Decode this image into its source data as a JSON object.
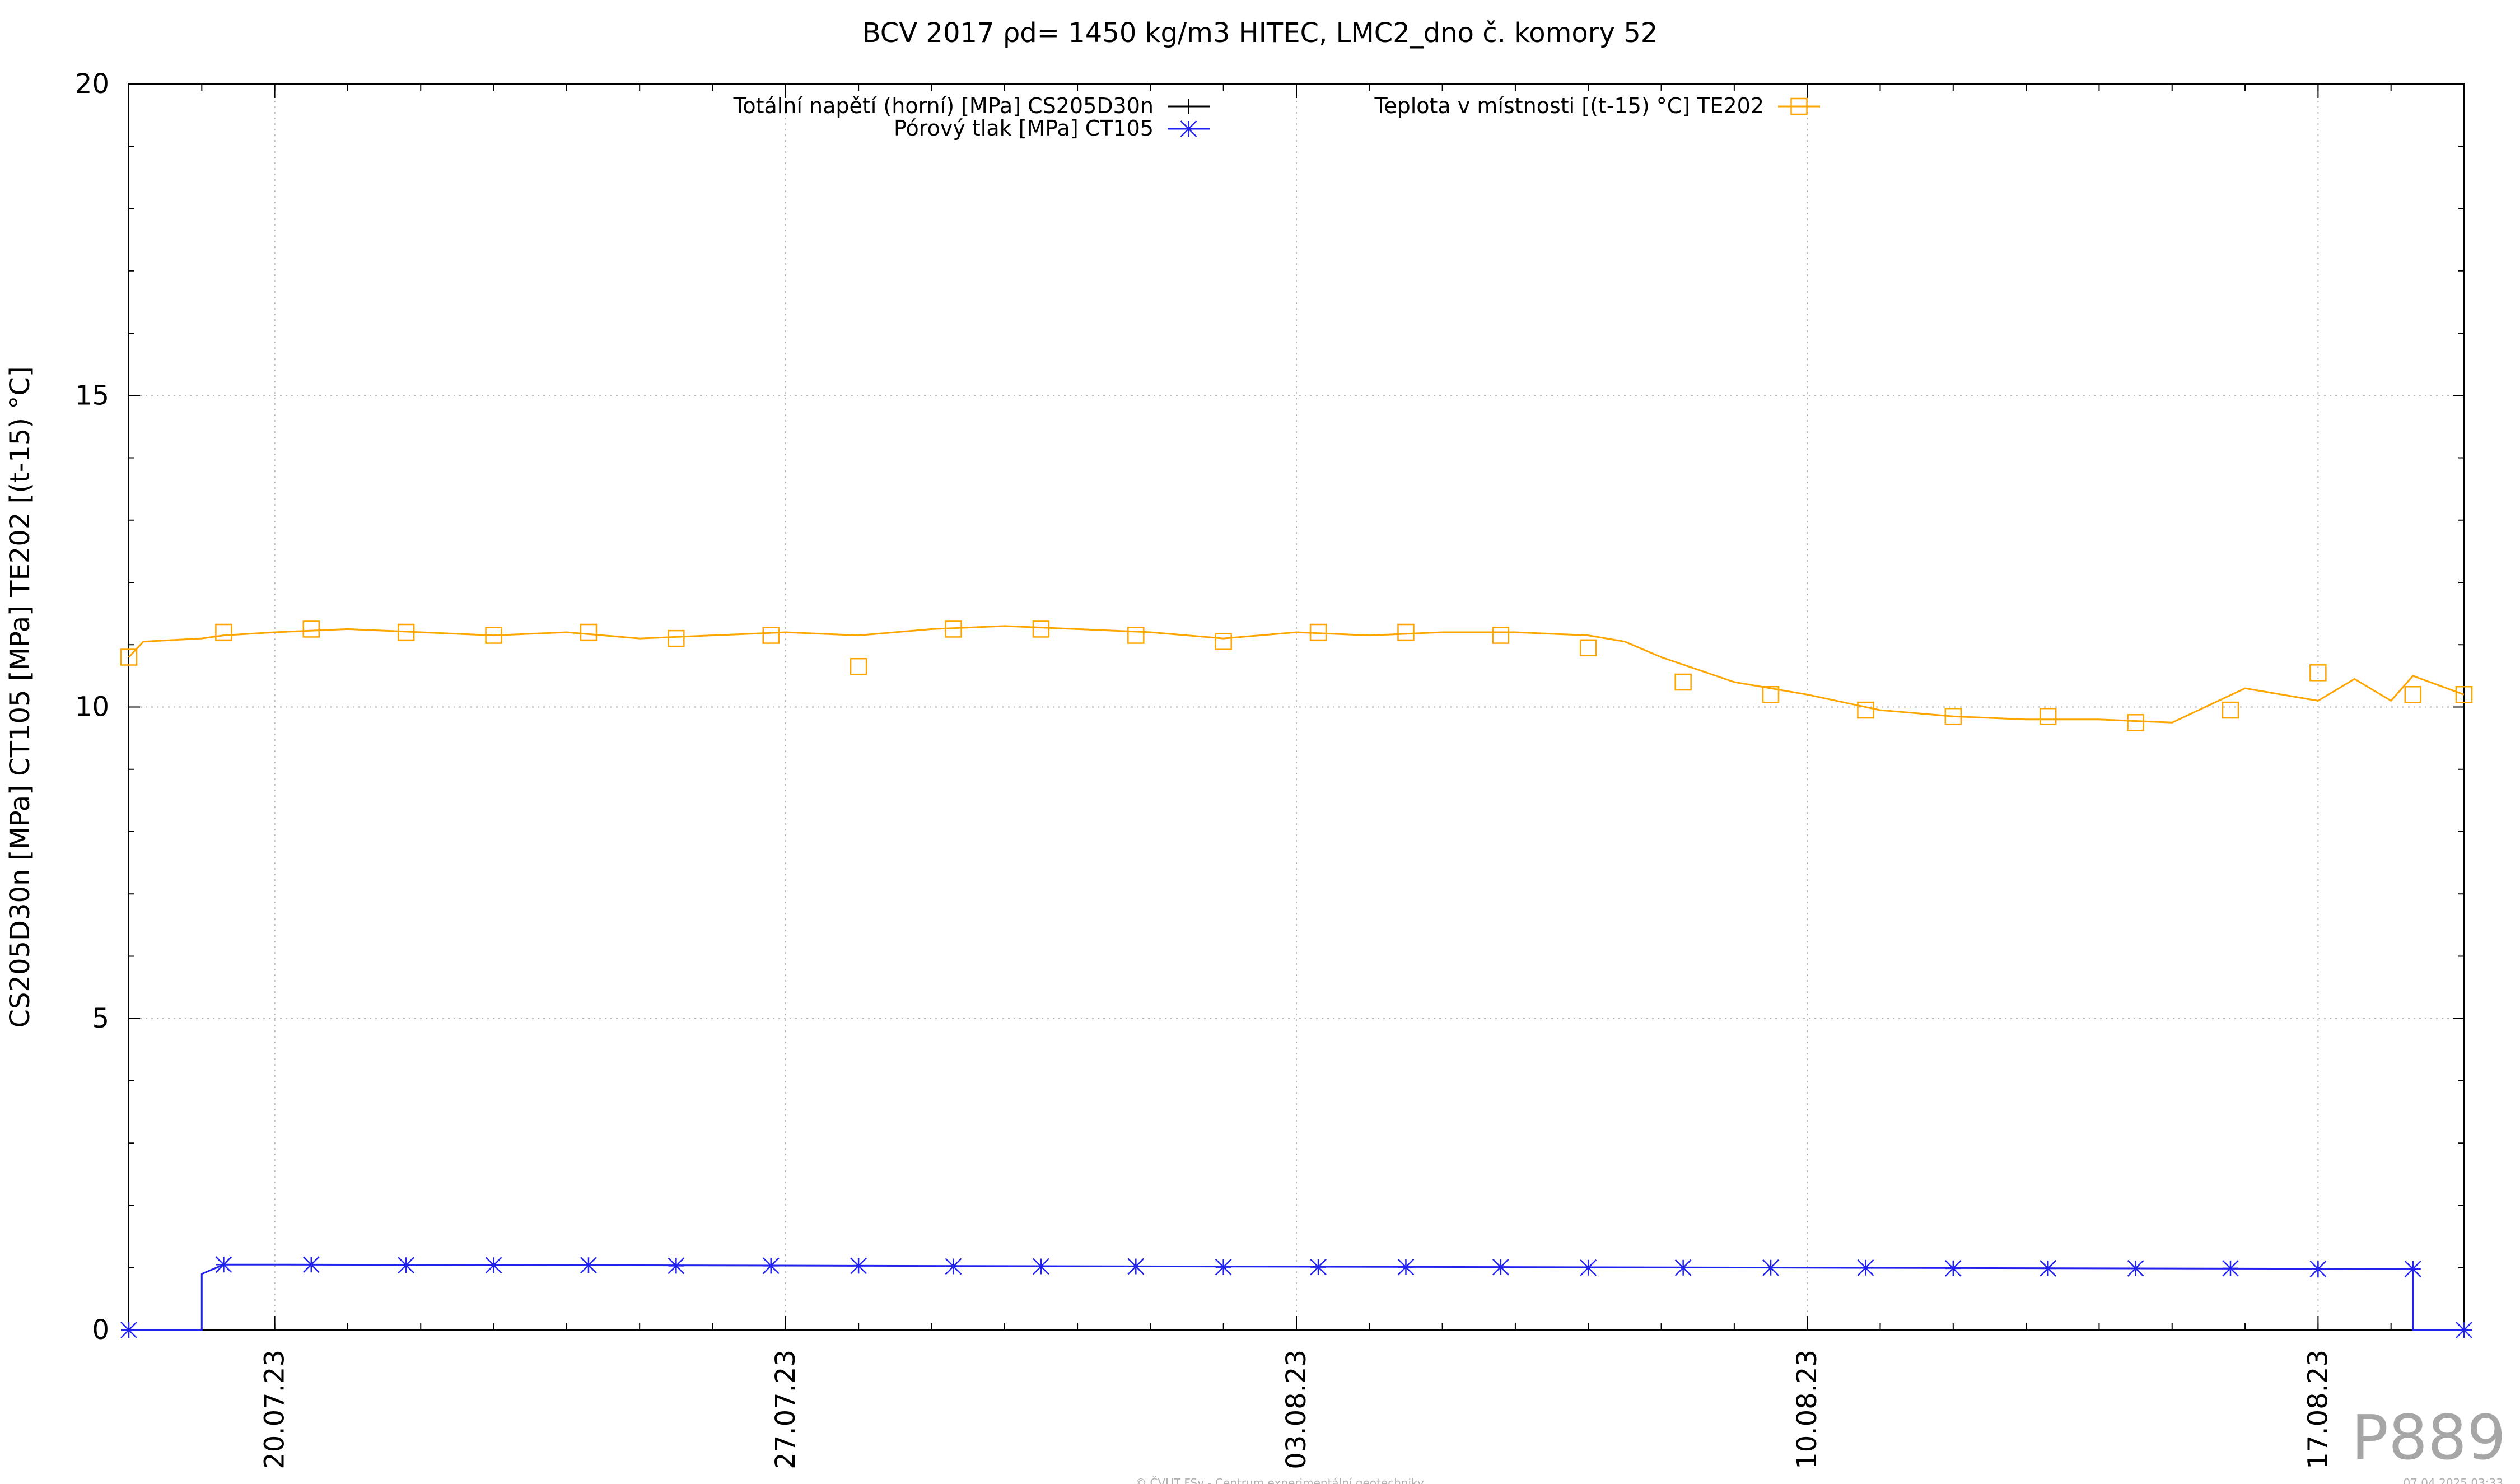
{
  "chart_data": {
    "type": "line",
    "title": "BCV 2017 ρd= 1450 kg/m3 HITEC, LMC2_dno č. komory 52",
    "ylabel": "CS205D30n [MPa] CT105 [MPa] TE202 [(t-15) °C]",
    "xlabel": "",
    "ylim": [
      0,
      20
    ],
    "yticks": [
      0,
      5,
      10,
      15,
      20
    ],
    "xlim": [
      "2023-07-18",
      "2023-08-19"
    ],
    "xticks": [
      "20.07.23",
      "27.07.23",
      "03.08.23",
      "10.08.23",
      "17.08.23"
    ],
    "grid": true,
    "legend_placement": "top",
    "series": [
      {
        "name": "Totální napětí (horní) [MPa] CS205D30n",
        "color": "#000000",
        "marker": "plus",
        "x": [],
        "values": []
      },
      {
        "name": "Pórový tlak [MPa] CT105",
        "color": "#2222ee",
        "marker": "star",
        "x": [
          "2023-07-18",
          "2023-07-19",
          "2023-07-19",
          "2023-07-19.3",
          "2023-07-20",
          "2023-08-18.3",
          "2023-08-18.3",
          "2023-08-19"
        ],
        "values": [
          0.0,
          0.0,
          0.9,
          1.05,
          1.05,
          0.98,
          0.0,
          0.0
        ],
        "marker_x": [
          "2023-07-18",
          "2023-07-19.3",
          "2023-07-20.5",
          "2023-07-21.8",
          "2023-07-23",
          "2023-07-24.3",
          "2023-07-25.5",
          "2023-07-26.8",
          "2023-07-28",
          "2023-07-29.3",
          "2023-07-30.5",
          "2023-07-31.8",
          "2023-08-02",
          "2023-08-03.3",
          "2023-08-04.5",
          "2023-08-05.8",
          "2023-08-07",
          "2023-08-08.3",
          "2023-08-09.5",
          "2023-08-10.8",
          "2023-08-12",
          "2023-08-13.3",
          "2023-08-14.5",
          "2023-08-15.8",
          "2023-08-17",
          "2023-08-18.3",
          "2023-08-19"
        ],
        "marker_values": [
          0.0,
          1.05,
          1.05,
          1.04,
          1.04,
          1.04,
          1.03,
          1.03,
          1.03,
          1.02,
          1.02,
          1.02,
          1.01,
          1.01,
          1.01,
          1.01,
          1.0,
          1.0,
          1.0,
          1.0,
          0.99,
          0.99,
          0.99,
          0.99,
          0.98,
          0.98,
          0.0
        ]
      },
      {
        "name": "Teplota v místnosti [(t-15) °C] TE202",
        "color": "#ffa500",
        "marker": "square",
        "x": [
          "2023-07-18",
          "2023-07-18.2",
          "2023-07-19",
          "2023-07-19.3",
          "2023-07-20",
          "2023-07-21",
          "2023-07-22",
          "2023-07-23",
          "2023-07-24",
          "2023-07-25",
          "2023-07-26",
          "2023-07-27",
          "2023-07-28",
          "2023-07-29",
          "2023-07-30",
          "2023-07-31",
          "2023-08-01",
          "2023-08-02",
          "2023-08-03",
          "2023-08-04",
          "2023-08-05",
          "2023-08-06",
          "2023-08-07",
          "2023-08-07.5",
          "2023-08-08",
          "2023-08-09",
          "2023-08-10",
          "2023-08-11",
          "2023-08-12",
          "2023-08-13",
          "2023-08-14",
          "2023-08-15",
          "2023-08-16",
          "2023-08-17",
          "2023-08-17.5",
          "2023-08-18",
          "2023-08-18.3",
          "2023-08-19"
        ],
        "values": [
          10.8,
          11.05,
          11.1,
          11.15,
          11.2,
          11.25,
          11.2,
          11.15,
          11.2,
          11.1,
          11.15,
          11.2,
          11.15,
          11.25,
          11.3,
          11.25,
          11.2,
          11.1,
          11.2,
          11.15,
          11.2,
          11.2,
          11.15,
          11.05,
          10.8,
          10.4,
          10.2,
          9.95,
          9.85,
          9.8,
          9.8,
          9.75,
          10.3,
          10.1,
          10.45,
          10.1,
          10.5,
          10.2
        ],
        "marker_x": [
          "2023-07-18",
          "2023-07-19.3",
          "2023-07-20.5",
          "2023-07-21.8",
          "2023-07-23",
          "2023-07-24.3",
          "2023-07-25.5",
          "2023-07-26.8",
          "2023-07-28",
          "2023-07-29.3",
          "2023-07-30.5",
          "2023-07-31.8",
          "2023-08-02",
          "2023-08-03.3",
          "2023-08-04.5",
          "2023-08-05.8",
          "2023-08-07",
          "2023-08-08.3",
          "2023-08-09.5",
          "2023-08-10.8",
          "2023-08-12",
          "2023-08-13.3",
          "2023-08-14.5",
          "2023-08-15.8",
          "2023-08-17",
          "2023-08-18.3",
          "2023-08-19"
        ],
        "marker_values": [
          10.8,
          11.2,
          11.25,
          11.2,
          11.15,
          11.2,
          11.1,
          11.15,
          10.65,
          11.25,
          11.25,
          11.15,
          11.05,
          11.2,
          11.2,
          11.15,
          10.95,
          10.4,
          10.2,
          9.95,
          9.85,
          9.85,
          9.75,
          9.95,
          10.55,
          10.2,
          10.2
        ]
      }
    ]
  },
  "footer": {
    "copyright": "© ČVUT FSv - Centrum experimentální geotechniky",
    "timestamp": "07.04.2025 03:33",
    "id_label": "P889"
  }
}
